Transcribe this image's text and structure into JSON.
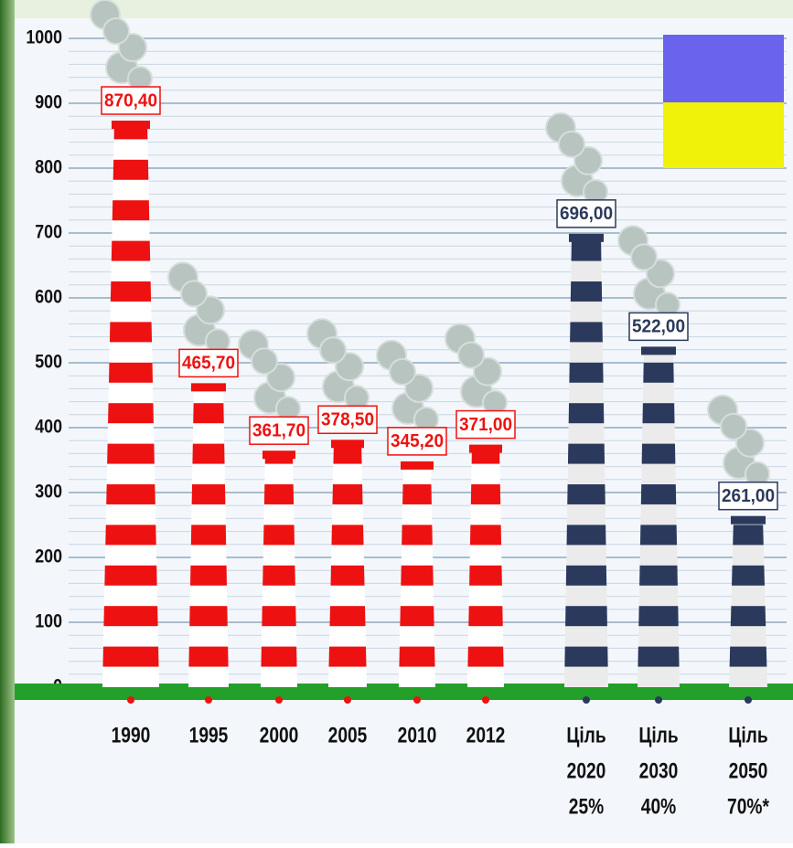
{
  "chart_data": {
    "type": "bar",
    "categories": [
      "1990",
      "1995",
      "2000",
      "2005",
      "2010",
      "2012",
      [
        "Ціль",
        "2020",
        "25%"
      ],
      [
        "Ціль",
        "2030",
        "40%"
      ],
      [
        "Ціль",
        "2050",
        "70%*"
      ]
    ],
    "values": [
      870.4,
      465.7,
      361.7,
      378.5,
      345.2,
      371.0,
      696.0,
      522.0,
      261.0
    ],
    "value_labels": [
      "870,40",
      "465,70",
      "361,70",
      "378,50",
      "345,20",
      "371,00",
      "696,00",
      "522,00",
      "261,00"
    ],
    "colors": [
      "#ee1111",
      "#ee1111",
      "#ee1111",
      "#ee1111",
      "#ee1111",
      "#ee1111",
      "#2b3a5c",
      "#2b3a5c",
      "#2b3a5c"
    ],
    "ylim": [
      0,
      1000
    ],
    "yticks": [
      0,
      100,
      200,
      300,
      400,
      500,
      600,
      700,
      800,
      900,
      1000
    ],
    "grid": true
  }
}
